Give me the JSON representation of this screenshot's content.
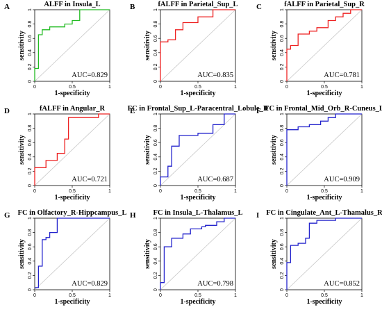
{
  "chart_data": [
    {
      "type": "line",
      "panel": "A",
      "title": "ALFF in Insula_L",
      "xlabel": "1-specificity",
      "ylabel": "sensitivity",
      "xlim": [
        0,
        1
      ],
      "ylim": [
        0,
        1
      ],
      "xticks": [
        "0",
        "0.5",
        "1"
      ],
      "yticks": [
        "0",
        "0.2",
        "0.4",
        "0.6",
        "0.8",
        "1"
      ],
      "color": "#22bb22",
      "auc": "AUC=0.829",
      "x": [
        0,
        0,
        0.05,
        0.05,
        0.1,
        0.1,
        0.2,
        0.2,
        0.3,
        0.3,
        0.4,
        0.4,
        0.5,
        0.5,
        0.6,
        0.6,
        1
      ],
      "y": [
        0,
        0.18,
        0.18,
        0.65,
        0.65,
        0.72,
        0.72,
        0.76,
        0.76,
        0.76,
        0.76,
        0.8,
        0.8,
        0.85,
        0.85,
        1,
        1
      ]
    },
    {
      "type": "line",
      "panel": "B",
      "title": "fALFF in Parietal_Sup_L",
      "xlabel": "1-specificity",
      "ylabel": "sensitivity",
      "xlim": [
        0,
        1
      ],
      "ylim": [
        0,
        1
      ],
      "xticks": [
        "0",
        "0.5",
        "1"
      ],
      "yticks": [
        "0",
        "0.2",
        "0.4",
        "0.6",
        "0.8",
        "1"
      ],
      "color": "#ee2222",
      "auc": "AUC=0.835",
      "x": [
        0,
        0,
        0.1,
        0.1,
        0.2,
        0.2,
        0.3,
        0.3,
        0.5,
        0.5,
        0.7,
        0.7,
        1
      ],
      "y": [
        0,
        0.55,
        0.55,
        0.58,
        0.58,
        0.72,
        0.72,
        0.82,
        0.82,
        0.9,
        0.9,
        1,
        1
      ]
    },
    {
      "type": "line",
      "panel": "C",
      "title": "fALFF in Parietal_Sup_R",
      "xlabel": "1-specificity",
      "ylabel": "sensitivity",
      "xlim": [
        0,
        1
      ],
      "ylim": [
        0,
        1
      ],
      "xticks": [
        "0",
        "0.5",
        "1"
      ],
      "yticks": [
        "0",
        "0.2",
        "0.4",
        "0.6",
        "0.8",
        "1"
      ],
      "color": "#ee2222",
      "auc": "AUC=0.781",
      "x": [
        0,
        0,
        0.05,
        0.05,
        0.15,
        0.15,
        0.3,
        0.3,
        0.4,
        0.4,
        0.55,
        0.55,
        0.65,
        0.65,
        0.75,
        0.75,
        0.85,
        0.85,
        1
      ],
      "y": [
        0,
        0.45,
        0.45,
        0.5,
        0.5,
        0.66,
        0.66,
        0.7,
        0.7,
        0.75,
        0.75,
        0.85,
        0.85,
        0.9,
        0.9,
        0.95,
        0.95,
        1,
        1
      ]
    },
    {
      "type": "line",
      "panel": "D",
      "title": "fALFF in Angular_R",
      "xlabel": "1-specificity",
      "ylabel": "sensitivity",
      "xlim": [
        0,
        1
      ],
      "ylim": [
        0,
        1
      ],
      "xticks": [
        "0",
        "0.5",
        "1"
      ],
      "yticks": [
        "0",
        "0.2",
        "0.4",
        "0.6",
        "0.8",
        "1"
      ],
      "color": "#ee2222",
      "auc": "AUC=0.721",
      "x": [
        0,
        0,
        0.15,
        0.15,
        0.3,
        0.3,
        0.4,
        0.4,
        0.45,
        0.45,
        0.85,
        0.85,
        1
      ],
      "y": [
        0,
        0.25,
        0.25,
        0.35,
        0.35,
        0.45,
        0.45,
        0.65,
        0.65,
        0.95,
        0.95,
        1,
        1
      ]
    },
    {
      "type": "line",
      "panel": "E",
      "title": "FC in Frontal_Sup_L-Paracentral_Lobule_R",
      "xlabel": "1-specificity",
      "ylabel": "sensitivity",
      "xlim": [
        0,
        1
      ],
      "ylim": [
        0,
        1
      ],
      "xticks": [
        "0",
        "0.5",
        "1"
      ],
      "yticks": [
        "0",
        "0.2",
        "0.4",
        "0.6",
        "0.8",
        "1"
      ],
      "color": "#2222cc",
      "auc": "AUC=0.687",
      "x": [
        0,
        0,
        0.1,
        0.1,
        0.15,
        0.15,
        0.25,
        0.25,
        0.5,
        0.5,
        0.7,
        0.7,
        0.85,
        0.85,
        1
      ],
      "y": [
        0,
        0.12,
        0.12,
        0.27,
        0.27,
        0.55,
        0.55,
        0.7,
        0.7,
        0.73,
        0.73,
        0.85,
        0.85,
        1,
        1
      ]
    },
    {
      "type": "line",
      "panel": "F",
      "title": "FC in Frontal_Mid_Orb_R-Cuneus_L",
      "xlabel": "1-specificity",
      "ylabel": "sensitivity",
      "xlim": [
        0,
        1
      ],
      "ylim": [
        0,
        1
      ],
      "xticks": [
        "0",
        "0.5",
        "1"
      ],
      "yticks": [
        "0",
        "0.2",
        "0.4",
        "0.6",
        "0.8",
        "1"
      ],
      "color": "#2222cc",
      "auc": "AUC=0.909",
      "x": [
        0,
        0,
        0.15,
        0.15,
        0.3,
        0.3,
        0.45,
        0.45,
        0.55,
        0.55,
        0.65,
        0.65,
        1
      ],
      "y": [
        0,
        0.78,
        0.78,
        0.82,
        0.82,
        0.85,
        0.85,
        0.9,
        0.9,
        0.95,
        0.95,
        1,
        1
      ]
    },
    {
      "type": "line",
      "panel": "G",
      "title": "FC in Olfactory_R-Hippcampus_L",
      "xlabel": "1-specificity",
      "ylabel": "sensitivity",
      "xlim": [
        0,
        1
      ],
      "ylim": [
        0,
        1
      ],
      "xticks": [
        "0",
        "0.5",
        "1"
      ],
      "yticks": [
        "0",
        "0.2",
        "0.4",
        "0.6",
        "0.8",
        "1"
      ],
      "color": "#2222cc",
      "auc": "AUC=0.829",
      "x": [
        0,
        0.05,
        0.05,
        0.1,
        0.1,
        0.15,
        0.15,
        0.2,
        0.2,
        0.3,
        0.3,
        1
      ],
      "y": [
        0.03,
        0.03,
        0.33,
        0.33,
        0.7,
        0.7,
        0.73,
        0.73,
        0.8,
        0.8,
        1,
        1
      ]
    },
    {
      "type": "line",
      "panel": "H",
      "title": "FC in Insula_L-Thalamus_L",
      "xlabel": "1-specificity",
      "ylabel": "sensitivity",
      "xlim": [
        0,
        1
      ],
      "ylim": [
        0,
        1
      ],
      "xticks": [
        "0",
        "0.5",
        "1"
      ],
      "yticks": [
        "0",
        "0.2",
        "0.4",
        "0.6",
        "0.8",
        "1"
      ],
      "color": "#2222cc",
      "auc": "AUC=0.798",
      "x": [
        0,
        0,
        0.05,
        0.05,
        0.15,
        0.15,
        0.3,
        0.3,
        0.4,
        0.4,
        0.55,
        0.55,
        0.6,
        0.6,
        0.75,
        0.75,
        0.85,
        0.85,
        1
      ],
      "y": [
        0,
        0.1,
        0.1,
        0.6,
        0.6,
        0.72,
        0.72,
        0.78,
        0.78,
        0.85,
        0.85,
        0.88,
        0.88,
        0.9,
        0.9,
        0.95,
        0.95,
        1,
        1
      ]
    },
    {
      "type": "line",
      "panel": "I",
      "title": "FC in Cingulate_Ant_L-Thamalus_R",
      "xlabel": "1-specificity",
      "ylabel": "sensitivity",
      "xlim": [
        0,
        1
      ],
      "ylim": [
        0,
        1
      ],
      "xticks": [
        "0",
        "0.5",
        "1"
      ],
      "yticks": [
        "0",
        "0.2",
        "0.4",
        "0.6",
        "0.8",
        "1"
      ],
      "color": "#2222cc",
      "auc": "AUC=0.852",
      "x": [
        0,
        0,
        0.05,
        0.05,
        0.15,
        0.15,
        0.25,
        0.25,
        0.3,
        0.3,
        0.4,
        0.4,
        0.65,
        0.65,
        1
      ],
      "y": [
        0,
        0.38,
        0.38,
        0.62,
        0.62,
        0.65,
        0.65,
        0.72,
        0.72,
        0.93,
        0.93,
        0.97,
        0.97,
        1,
        1
      ]
    }
  ]
}
